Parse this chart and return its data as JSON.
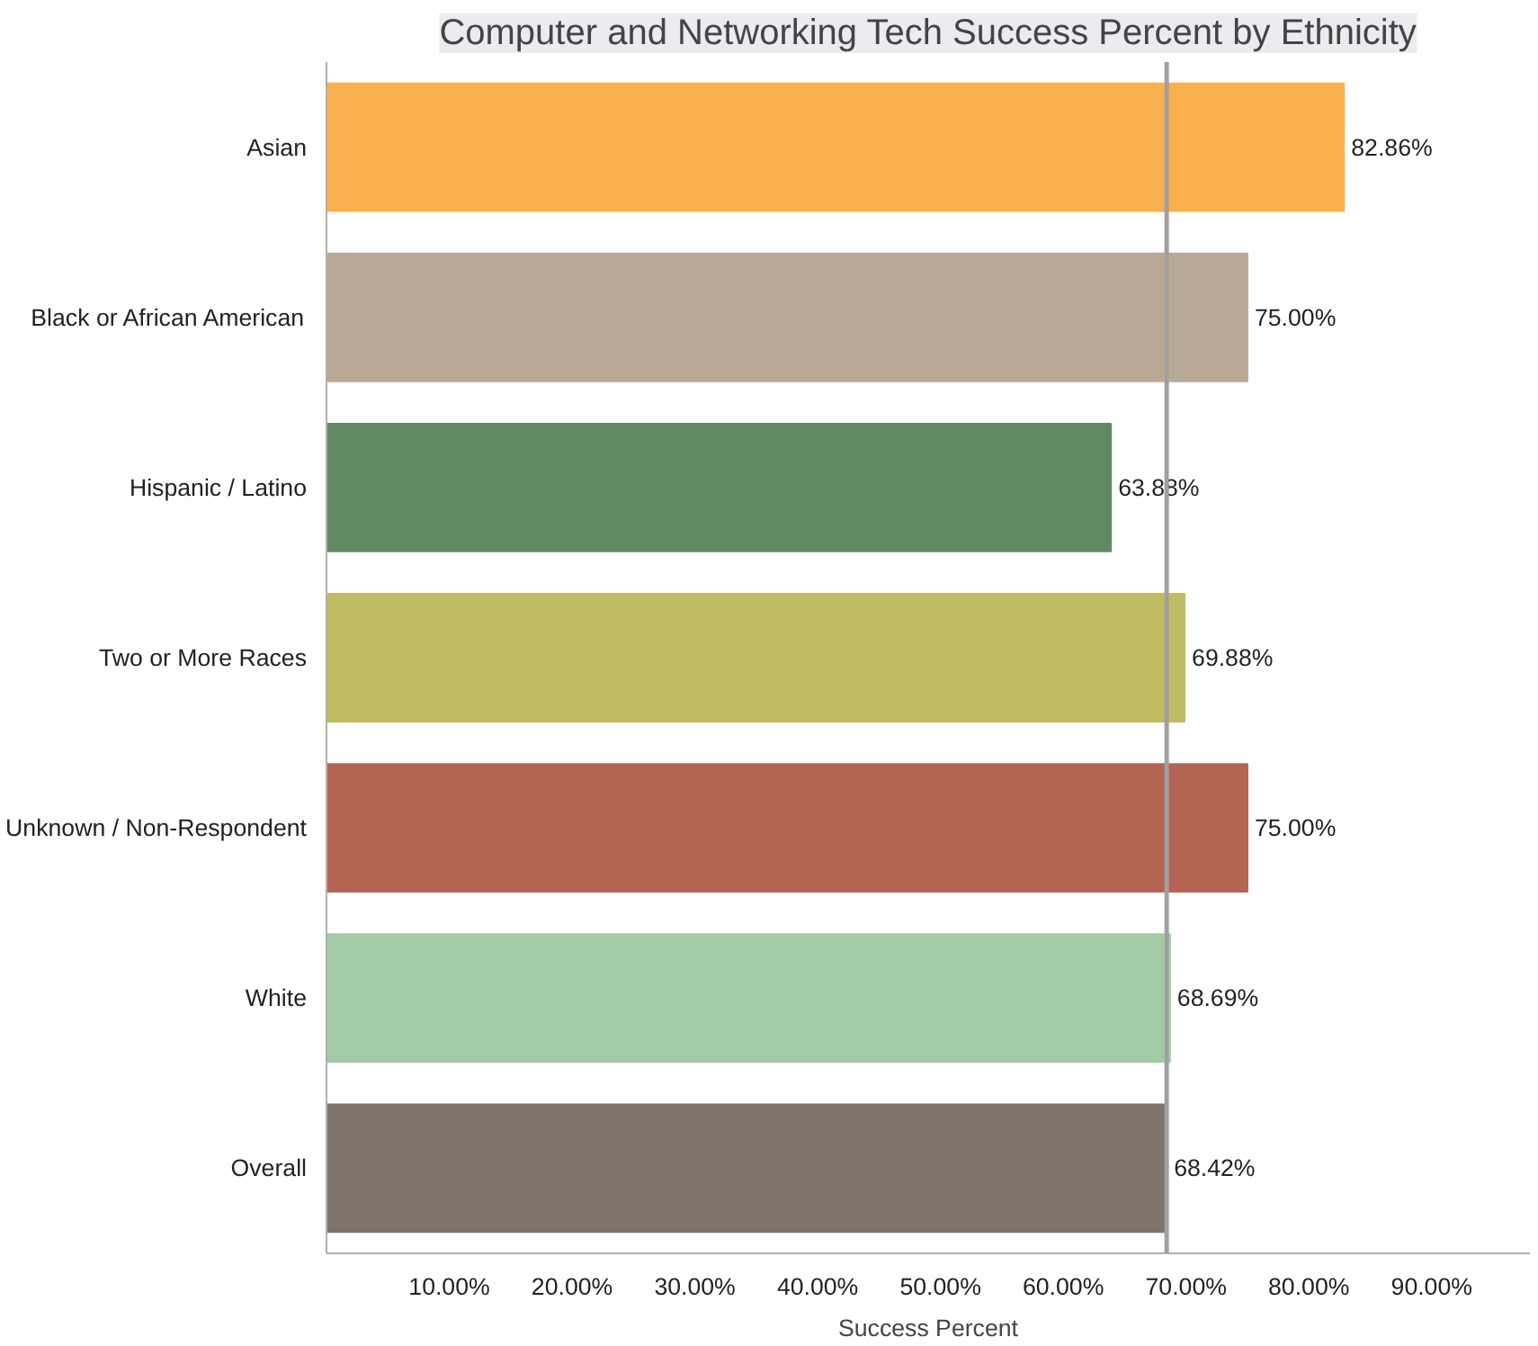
{
  "chart_data": {
    "type": "bar",
    "orientation": "horizontal",
    "title": "Computer and Networking Tech Success Percent by Ethnicity",
    "xlabel": "Success Percent",
    "categories": [
      "Asian",
      "Black or African American",
      "Hispanic / Latino",
      "Two or More Races",
      "Unknown / Non-Respondent",
      "White",
      "Overall"
    ],
    "values": [
      82.86,
      75.0,
      63.88,
      69.88,
      75.0,
      68.69,
      68.42
    ],
    "colors": [
      "#f9b04e",
      "#b8a996",
      "#618a63",
      "#c0bc61",
      "#b46452",
      "#a2cca6",
      "#7d736a"
    ],
    "value_labels": [
      "82.86%",
      "75.00%",
      "63.88%",
      "69.88%",
      "75.00%",
      "68.69%",
      "68.42%"
    ],
    "xlim": [
      0,
      98
    ],
    "xticks": [
      {
        "value": 10,
        "label": "10.00%"
      },
      {
        "value": 20,
        "label": "20.00%"
      },
      {
        "value": 30,
        "label": "30.00%"
      },
      {
        "value": 40,
        "label": "40.00%"
      },
      {
        "value": 50,
        "label": "50.00%"
      },
      {
        "value": 60,
        "label": "60.00%"
      },
      {
        "value": 70,
        "label": "70.00%"
      },
      {
        "value": 80,
        "label": "80.00%"
      },
      {
        "value": 90,
        "label": "90.00%"
      }
    ],
    "ref_lines": [
      {
        "axis": "x",
        "value": 68.42,
        "color": "#a0a0a0"
      }
    ],
    "grid": false
  }
}
